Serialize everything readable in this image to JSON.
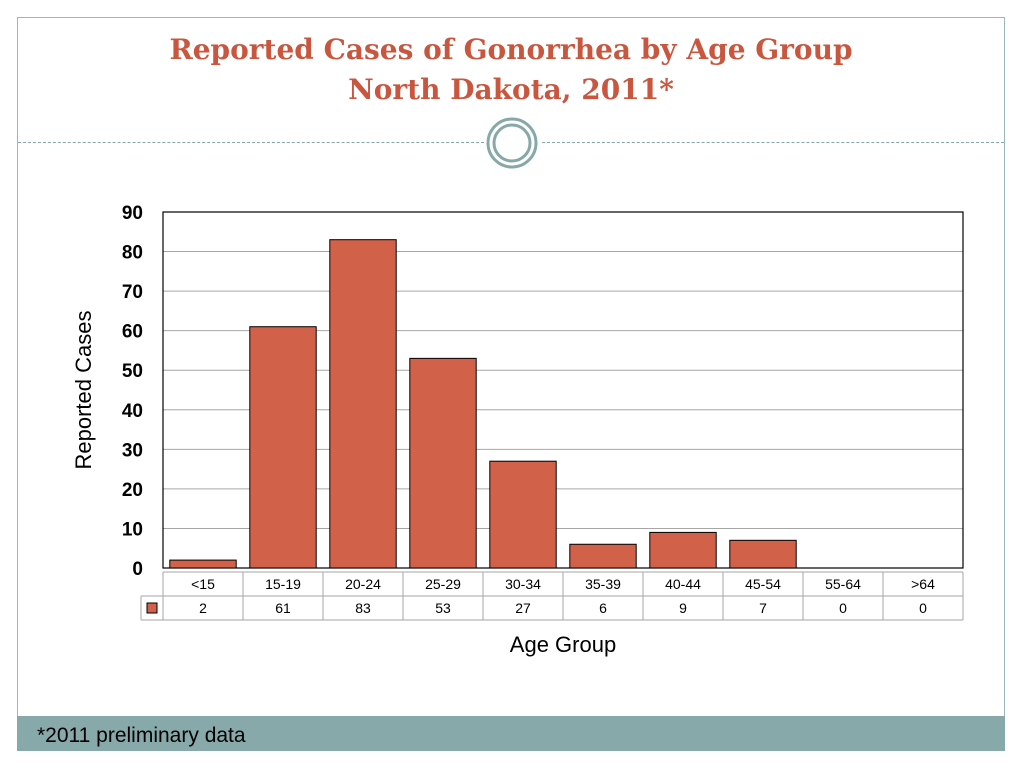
{
  "slide": {
    "title_line1": "Reported Cases of Gonorrhea by Age Group",
    "title_line2": "North Dakota, 2011*",
    "footnote": "*2011 preliminary data"
  },
  "colors": {
    "title": "#c9573f",
    "bar_fill": "#d2614a",
    "bar_stroke": "#000000",
    "footer_band": "#87a9a9",
    "divider": "#86a8a8"
  },
  "chart_data": {
    "type": "bar",
    "categories": [
      "<15",
      "15-19",
      "20-24",
      "25-29",
      "30-34",
      "35-39",
      "40-44",
      "45-54",
      "55-64",
      ">64"
    ],
    "values": [
      2,
      61,
      83,
      53,
      27,
      6,
      9,
      7,
      0,
      0
    ],
    "xlabel": "Age Group",
    "ylabel": "Reported Cases",
    "ylim": [
      0,
      90
    ],
    "yticks": [
      0,
      10,
      20,
      30,
      40,
      50,
      60,
      70,
      80,
      90
    ],
    "grid": true,
    "data_table": true,
    "legend": "data table row marker"
  }
}
